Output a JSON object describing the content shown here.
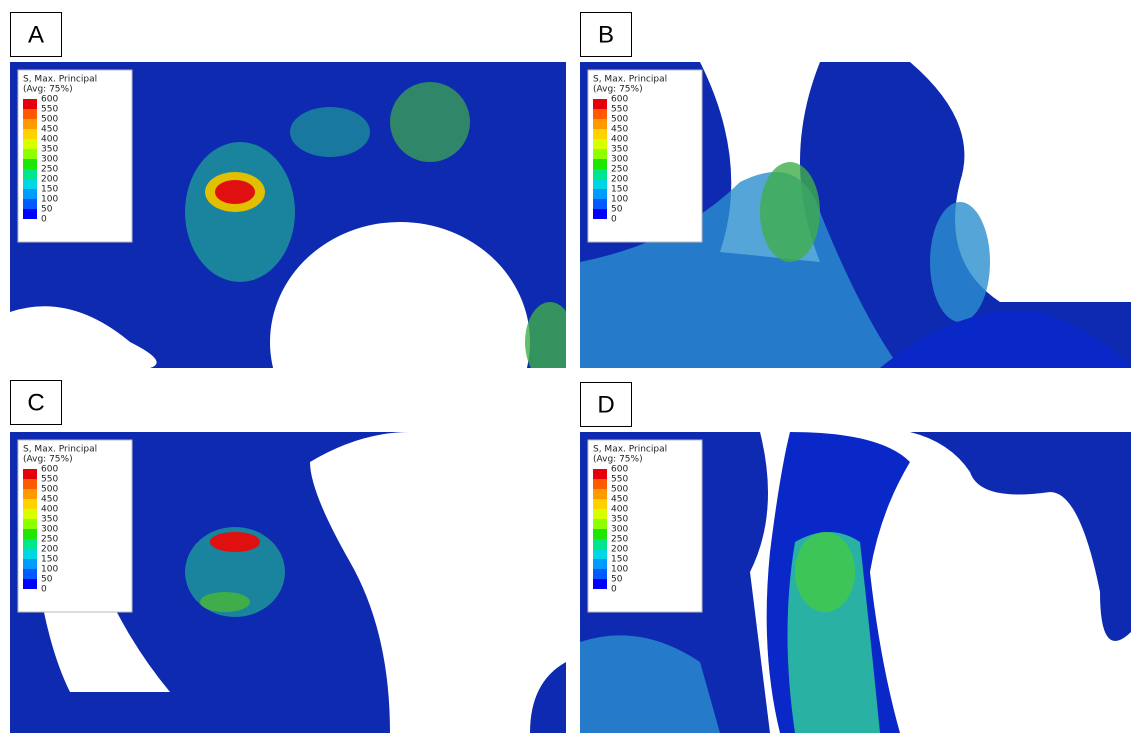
{
  "panels": [
    {
      "label": "A",
      "legend": {
        "title": "S, Max. Principal",
        "subtitle": "(Avg: 75%)",
        "ticks": [
          600,
          550,
          500,
          450,
          400,
          350,
          300,
          250,
          200,
          150,
          100,
          50,
          0
        ]
      }
    },
    {
      "label": "B",
      "legend": {
        "title": "S, Max. Principal",
        "subtitle": "(Avg: 75%)",
        "ticks": [
          600,
          550,
          500,
          450,
          400,
          350,
          300,
          250,
          200,
          150,
          100,
          50,
          0
        ]
      }
    },
    {
      "label": "C",
      "legend": {
        "title": "S, Max. Principal",
        "subtitle": "(Avg: 75%)",
        "ticks": [
          600,
          550,
          500,
          450,
          400,
          350,
          300,
          250,
          200,
          150,
          100,
          50,
          0
        ]
      }
    },
    {
      "label": "D",
      "legend": {
        "title": "S, Max. Principal",
        "subtitle": "(Avg: 75%)",
        "ticks": [
          600,
          550,
          500,
          450,
          400,
          350,
          300,
          250,
          200,
          150,
          100,
          50,
          0
        ]
      }
    }
  ]
}
